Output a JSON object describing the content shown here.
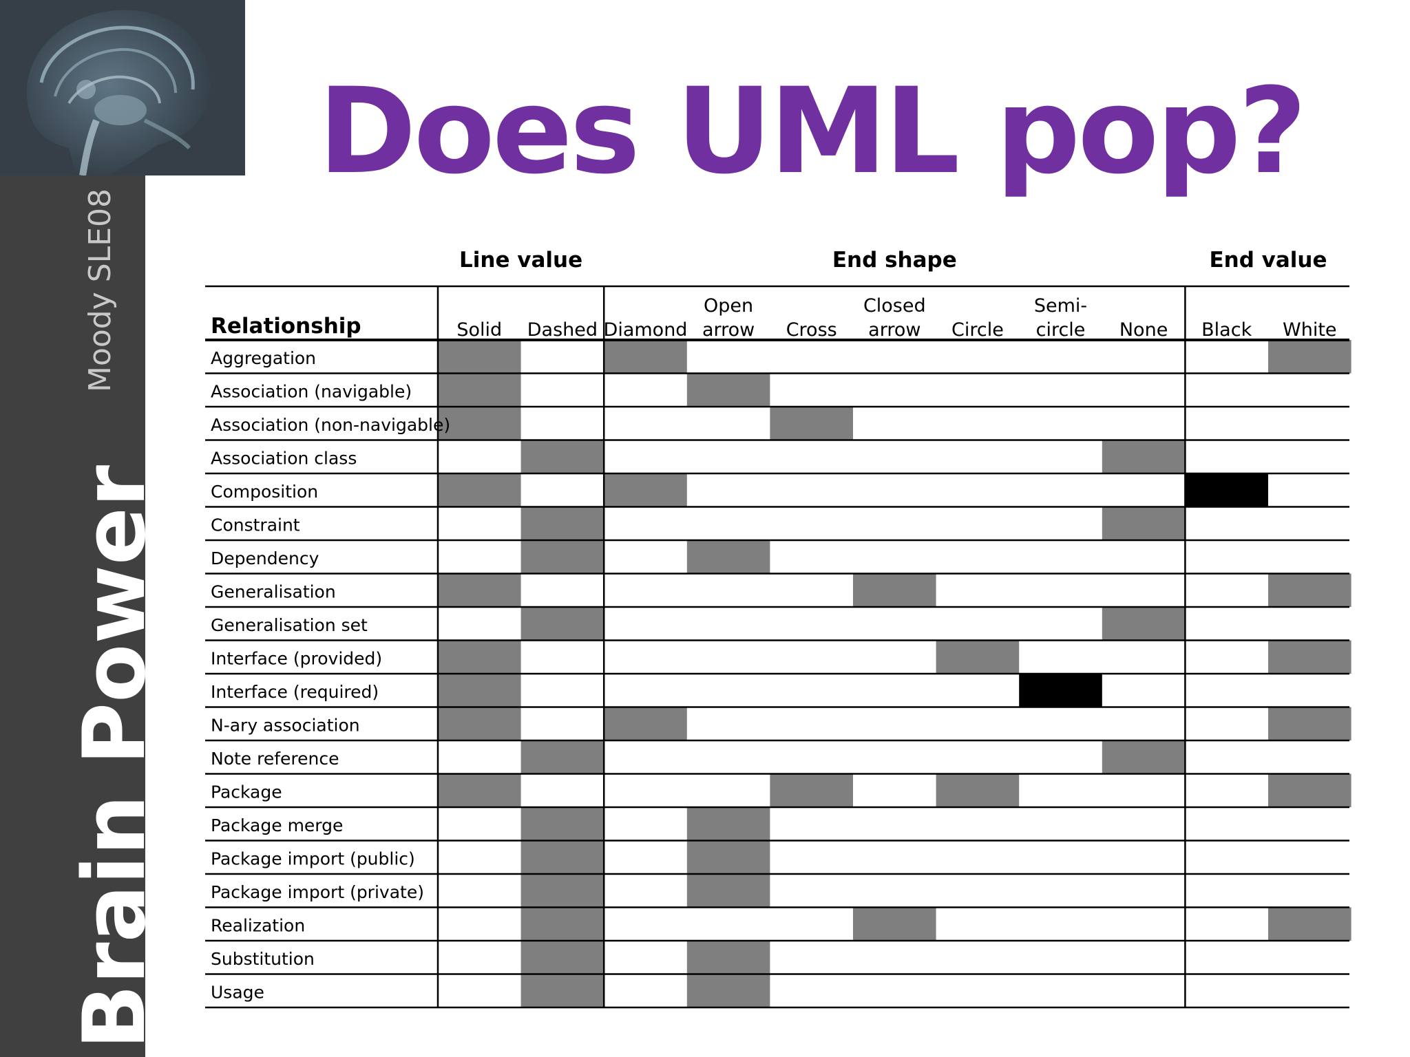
{
  "title": "Does UML pop?",
  "sidebar": {
    "brand": "Brain Power",
    "author": "Moody SLE08"
  },
  "colors": {
    "title": "#7030a0",
    "sidebar": "#404040",
    "grey_cell": "#7f7f7f",
    "black_cell": "#000000"
  },
  "table": {
    "relationship_header": "Relationship",
    "groups": [
      {
        "label": "Line value",
        "columns": [
          0,
          1
        ]
      },
      {
        "label": "End shape",
        "columns": [
          2,
          3,
          4,
          5,
          6,
          7,
          8
        ]
      },
      {
        "label": "End value",
        "columns": [
          9,
          10
        ]
      }
    ],
    "columns": [
      {
        "line1": "",
        "line2": "Solid"
      },
      {
        "line1": "",
        "line2": "Dashed"
      },
      {
        "line1": "",
        "line2": "Diamond"
      },
      {
        "line1": "Open",
        "line2": "arrow"
      },
      {
        "line1": "",
        "line2": "Cross"
      },
      {
        "line1": "Closed",
        "line2": "arrow"
      },
      {
        "line1": "",
        "line2": "Circle"
      },
      {
        "line1": "Semi-",
        "line2": "circle"
      },
      {
        "line1": "",
        "line2": "None"
      },
      {
        "line1": "",
        "line2": "Black"
      },
      {
        "line1": "",
        "line2": "White"
      }
    ],
    "rows": [
      {
        "label": "Aggregation",
        "cells": [
          "g",
          "",
          "g",
          "",
          "",
          "",
          "",
          "",
          "",
          "",
          "g"
        ]
      },
      {
        "label": "Association (navigable)",
        "cells": [
          "g",
          "",
          "",
          "g",
          "",
          "",
          "",
          "",
          "",
          "",
          ""
        ]
      },
      {
        "label": "Association (non-navigable)",
        "cells": [
          "g",
          "",
          "",
          "",
          "g",
          "",
          "",
          "",
          "",
          "",
          ""
        ]
      },
      {
        "label": "Association class",
        "cells": [
          "",
          "g",
          "",
          "",
          "",
          "",
          "",
          "",
          "g",
          "",
          ""
        ]
      },
      {
        "label": "Composition",
        "cells": [
          "g",
          "",
          "g",
          "",
          "",
          "",
          "",
          "",
          "",
          "b",
          ""
        ]
      },
      {
        "label": "Constraint",
        "cells": [
          "",
          "g",
          "",
          "",
          "",
          "",
          "",
          "",
          "g",
          "",
          ""
        ]
      },
      {
        "label": "Dependency",
        "cells": [
          "",
          "g",
          "",
          "g",
          "",
          "",
          "",
          "",
          "",
          "",
          ""
        ]
      },
      {
        "label": "Generalisation",
        "cells": [
          "g",
          "",
          "",
          "",
          "",
          "g",
          "",
          "",
          "",
          "",
          "g"
        ]
      },
      {
        "label": "Generalisation set",
        "cells": [
          "",
          "g",
          "",
          "",
          "",
          "",
          "",
          "",
          "g",
          "",
          ""
        ]
      },
      {
        "label": "Interface (provided)",
        "cells": [
          "g",
          "",
          "",
          "",
          "",
          "",
          "g",
          "",
          "",
          "",
          "g"
        ]
      },
      {
        "label": "Interface (required)",
        "cells": [
          "g",
          "",
          "",
          "",
          "",
          "",
          "",
          "b",
          "",
          "",
          ""
        ]
      },
      {
        "label": "N-ary association",
        "cells": [
          "g",
          "",
          "g",
          "",
          "",
          "",
          "",
          "",
          "",
          "",
          "g"
        ]
      },
      {
        "label": "Note reference",
        "cells": [
          "",
          "g",
          "",
          "",
          "",
          "",
          "",
          "",
          "g",
          "",
          ""
        ]
      },
      {
        "label": "Package",
        "cells": [
          "g",
          "",
          "",
          "",
          "g",
          "",
          "g",
          "",
          "",
          "",
          "g"
        ]
      },
      {
        "label": "Package merge",
        "cells": [
          "",
          "g",
          "",
          "g",
          "",
          "",
          "",
          "",
          "",
          "",
          ""
        ]
      },
      {
        "label": "Package import (public)",
        "cells": [
          "",
          "g",
          "",
          "g",
          "",
          "",
          "",
          "",
          "",
          "",
          ""
        ]
      },
      {
        "label": "Package import (private)",
        "cells": [
          "",
          "g",
          "",
          "g",
          "",
          "",
          "",
          "",
          "",
          "",
          ""
        ]
      },
      {
        "label": "Realization",
        "cells": [
          "",
          "g",
          "",
          "",
          "",
          "g",
          "",
          "",
          "",
          "",
          "g"
        ]
      },
      {
        "label": "Substitution",
        "cells": [
          "",
          "g",
          "",
          "g",
          "",
          "",
          "",
          "",
          "",
          "",
          ""
        ]
      },
      {
        "label": "Usage",
        "cells": [
          "",
          "g",
          "",
          "g",
          "",
          "",
          "",
          "",
          "",
          "",
          ""
        ]
      }
    ]
  }
}
